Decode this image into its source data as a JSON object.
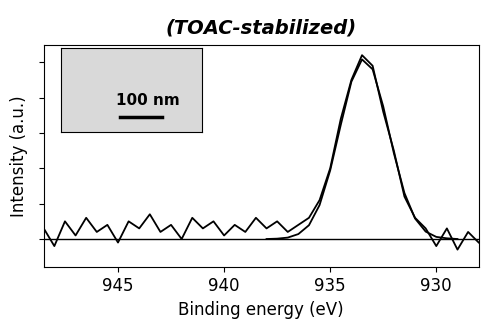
{
  "chart_data": {
    "type": "line",
    "title": "(TOAC-stabilized)",
    "x_label": "Binding energy (eV)",
    "y_label": "Intensity (a.u.)",
    "xlim": [
      948.5,
      928
    ],
    "xticks": [
      945,
      940,
      935,
      930
    ],
    "ylim": [
      -0.8,
      5.5
    ],
    "yticks": [
      0,
      1,
      2,
      3,
      4,
      5
    ],
    "tick_labels": "x",
    "baseline": 0,
    "inset": {
      "scale_bar_label": "100 nm"
    },
    "series": [
      {
        "color": "#000000",
        "x": [
          948.5,
          948,
          947.5,
          947,
          946.5,
          946,
          945.5,
          945,
          944.5,
          944,
          943.5,
          943,
          942.5,
          942,
          941.5,
          941,
          940.5,
          940,
          939.5,
          939,
          938.5,
          938,
          937.5,
          937,
          936.5,
          936,
          935.5,
          935,
          934.5,
          934,
          933.5,
          933,
          932.5,
          932,
          931.5,
          931,
          930.5,
          930,
          929.5,
          929,
          928.5,
          928
        ],
        "values": [
          0.3,
          -0.2,
          0.5,
          0.1,
          0.6,
          0.2,
          0.4,
          -0.1,
          0.5,
          0.3,
          0.7,
          0.2,
          0.4,
          0.0,
          0.6,
          0.3,
          0.5,
          0.1,
          0.4,
          0.2,
          0.6,
          0.3,
          0.5,
          0.2,
          0.4,
          0.6,
          1.1,
          2.0,
          3.4,
          4.5,
          5.2,
          4.9,
          3.6,
          2.5,
          1.2,
          0.6,
          0.3,
          -0.2,
          0.3,
          -0.3,
          0.2,
          -0.1
        ]
      },
      {
        "color": "#000000",
        "x": [
          938,
          937.5,
          937,
          936.5,
          936,
          935.5,
          935,
          934.5,
          934,
          933.5,
          933,
          932.5,
          932,
          931.5,
          931,
          930.5,
          930,
          929.5,
          929
        ],
        "values": [
          0.0,
          0.01,
          0.04,
          0.14,
          0.39,
          0.96,
          1.94,
          3.23,
          4.45,
          5.08,
          4.8,
          3.75,
          2.43,
          1.3,
          0.58,
          0.21,
          0.06,
          0.02,
          0.0
        ]
      }
    ]
  }
}
